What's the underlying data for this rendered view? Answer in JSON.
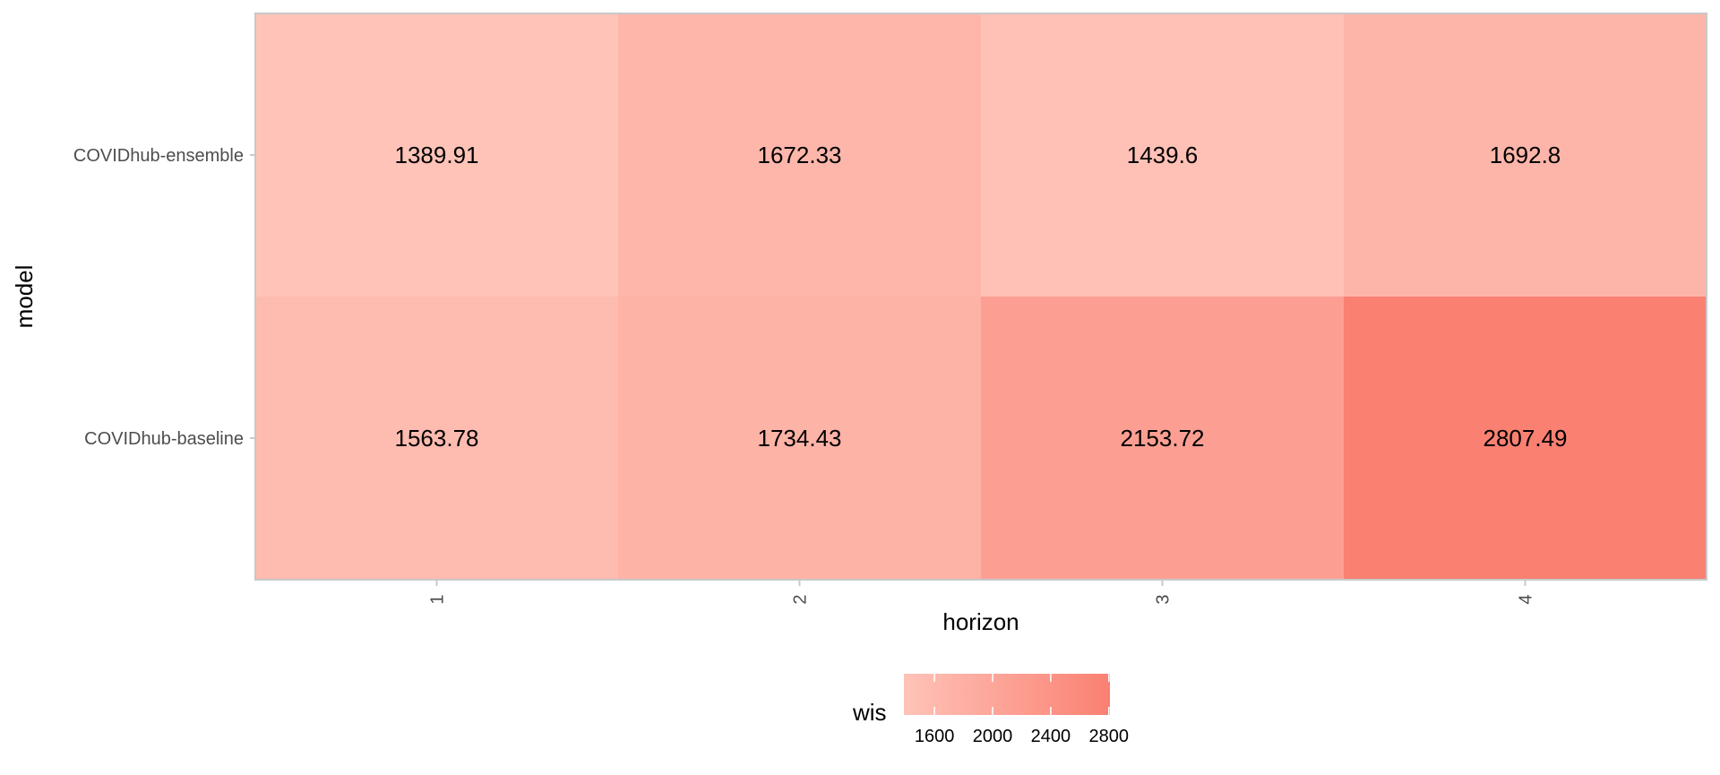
{
  "chart_data": {
    "type": "heatmap",
    "xlabel": "horizon",
    "ylabel": "model",
    "x_categories": [
      "1",
      "2",
      "3",
      "4"
    ],
    "y_categories": [
      "COVIDhub-ensemble",
      "COVIDhub-baseline"
    ],
    "values": [
      [
        1389.91,
        1672.33,
        1439.6,
        1692.8
      ],
      [
        1563.78,
        1734.43,
        2153.72,
        2807.49
      ]
    ],
    "value_labels": [
      [
        "1389.91",
        "1672.33",
        "1439.6",
        "1692.8"
      ],
      [
        "1563.78",
        "1734.43",
        "2153.72",
        "2807.49"
      ]
    ],
    "legend": {
      "title": "wis",
      "position": "bottom",
      "ticks": [
        1600,
        2000,
        2400,
        2800
      ],
      "tick_labels": [
        "1600",
        "2000",
        "2400",
        "2800"
      ],
      "range": [
        1389.91,
        2807.49
      ],
      "low_color": "#ffc3b8",
      "high_color": "#fa8072"
    },
    "grid": false
  }
}
